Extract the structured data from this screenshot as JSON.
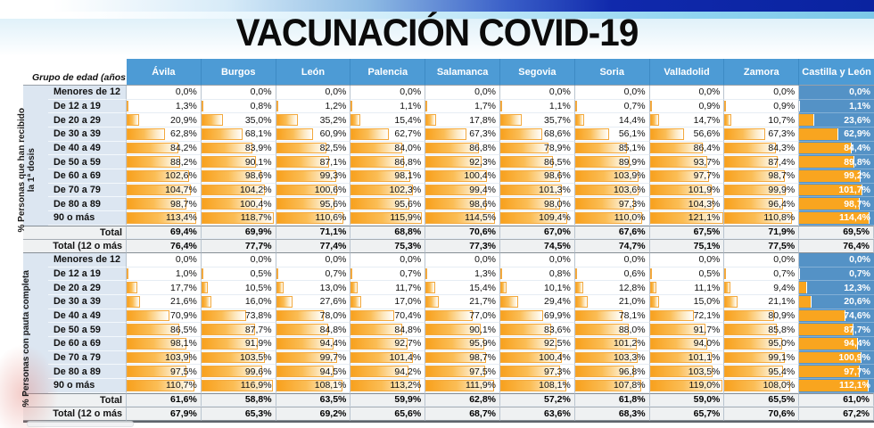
{
  "title": "VACUNACIÓN COVID-19",
  "chart_data": {
    "type": "table",
    "title": "VACUNACIÓN COVID-19",
    "corner_header": "Grupo de edad (años",
    "columns": [
      "Ávila",
      "Burgos",
      "León",
      "Palencia",
      "Salamanca",
      "Segovia",
      "Soria",
      "Valladolid",
      "Zamora",
      "Castilla y León"
    ],
    "age_groups": [
      "Menores de 12",
      "De 12 a 19",
      "De 20 a 29",
      "De 30 a 39",
      "De 40 a 49",
      "De 50 a 59",
      "De 60 a 69",
      "De 70 a 79",
      "De 80 a 89",
      "90 o más"
    ],
    "total_row_labels": [
      "Total",
      "Total (12 o más"
    ],
    "value_format": "percent-comma-1dec",
    "bar_max": 121.1,
    "sections": [
      {
        "name": "primera-dosis",
        "label_lines": [
          "% Personas que han recibido",
          "la 1ª dosis"
        ],
        "values": [
          [
            0.0,
            0.0,
            0.0,
            0.0,
            0.0,
            0.0,
            0.0,
            0.0,
            0.0,
            0.0
          ],
          [
            1.3,
            0.8,
            1.2,
            1.1,
            1.7,
            1.1,
            0.7,
            0.9,
            0.9,
            1.1
          ],
          [
            20.9,
            35.0,
            35.2,
            15.4,
            17.8,
            35.7,
            14.4,
            14.7,
            10.7,
            23.6
          ],
          [
            62.8,
            68.1,
            60.9,
            62.7,
            67.3,
            68.6,
            56.1,
            56.6,
            67.3,
            62.9
          ],
          [
            84.2,
            83.9,
            82.5,
            84.0,
            86.8,
            78.9,
            85.1,
            86.4,
            84.3,
            84.4
          ],
          [
            88.2,
            90.1,
            87.1,
            86.8,
            92.3,
            86.5,
            89.9,
            93.7,
            87.4,
            89.8
          ],
          [
            102.6,
            98.6,
            99.3,
            98.1,
            100.4,
            98.6,
            103.9,
            97.7,
            98.7,
            99.2
          ],
          [
            104.7,
            104.2,
            100.6,
            102.3,
            99.4,
            101.3,
            103.6,
            101.9,
            99.9,
            101.7
          ],
          [
            98.7,
            100.4,
            95.6,
            95.6,
            98.6,
            98.0,
            97.3,
            104.3,
            96.4,
            98.7
          ],
          [
            113.4,
            118.7,
            110.6,
            115.9,
            114.5,
            109.4,
            110.0,
            121.1,
            110.8,
            114.4
          ]
        ],
        "total": [
          69.4,
          69.9,
          71.1,
          68.8,
          70.6,
          67.0,
          67.6,
          67.5,
          71.9,
          69.5
        ],
        "total_12": [
          76.4,
          77.7,
          77.4,
          75.3,
          77.3,
          74.5,
          74.7,
          75.1,
          77.5,
          76.4
        ]
      },
      {
        "name": "pauta-completa",
        "label_lines": [
          "% Personas con pauta completa"
        ],
        "values": [
          [
            0.0,
            0.0,
            0.0,
            0.0,
            0.0,
            0.0,
            0.0,
            0.0,
            0.0,
            0.0
          ],
          [
            1.0,
            0.5,
            0.7,
            0.7,
            1.3,
            0.8,
            0.6,
            0.5,
            0.7,
            0.7
          ],
          [
            17.7,
            10.5,
            13.0,
            11.7,
            15.4,
            10.1,
            12.8,
            11.1,
            9.4,
            12.3
          ],
          [
            21.6,
            16.0,
            27.6,
            17.0,
            21.7,
            29.4,
            21.0,
            15.0,
            21.1,
            20.6
          ],
          [
            70.9,
            73.8,
            78.0,
            70.4,
            77.0,
            69.9,
            78.1,
            72.1,
            80.9,
            74.6
          ],
          [
            86.5,
            87.7,
            84.8,
            84.8,
            90.1,
            83.6,
            88.0,
            91.7,
            85.8,
            87.7
          ],
          [
            98.1,
            91.9,
            94.4,
            92.7,
            95.9,
            92.5,
            101.2,
            94.0,
            95.0,
            94.4
          ],
          [
            103.9,
            103.5,
            99.7,
            101.4,
            98.7,
            100.4,
            103.3,
            101.1,
            99.1,
            100.9
          ],
          [
            97.5,
            99.6,
            94.5,
            94.2,
            97.5,
            97.3,
            96.8,
            103.5,
            95.4,
            97.7
          ],
          [
            110.7,
            116.9,
            108.1,
            113.2,
            111.9,
            108.1,
            107.8,
            119.0,
            108.0,
            112.1
          ]
        ],
        "total": [
          61.6,
          58.8,
          63.5,
          59.9,
          62.8,
          57.2,
          61.8,
          59.0,
          65.5,
          61.0
        ],
        "total_12": [
          67.9,
          65.3,
          69.2,
          65.6,
          68.7,
          63.6,
          68.3,
          65.7,
          70.6,
          67.2
        ]
      }
    ]
  },
  "colors": {
    "header_blue": "#4D9BD5",
    "cyl_column_blue": "#5492C6",
    "label_blue": "#DCE6F1",
    "bar_orange": "#F9A21E",
    "banner_dark_blue": "#0A23A0",
    "banner_light_blue": "#8FD4F0"
  }
}
